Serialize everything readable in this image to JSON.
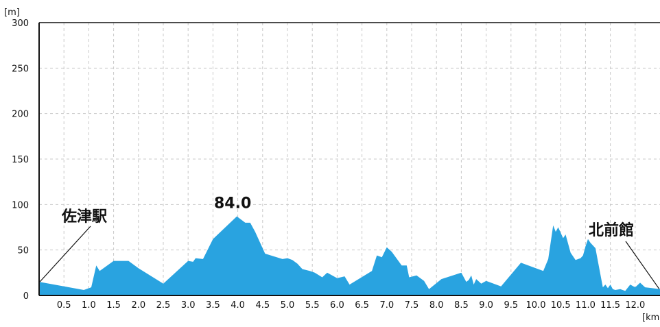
{
  "chart_data": {
    "type": "area",
    "ylabel_unit": "[m]",
    "xlabel_unit": "[km]",
    "ylim": [
      0,
      300
    ],
    "xlim": [
      0,
      12.5
    ],
    "yticks": [
      "0",
      "50",
      "100",
      "150",
      "200",
      "250",
      "300"
    ],
    "xticks": [
      "0.5",
      "1.0",
      "1.5",
      "2.0",
      "2.5",
      "3.0",
      "3.5",
      "4.0",
      "4.5",
      "5.0",
      "5.5",
      "6.0",
      "6.5",
      "7.0",
      "7.5",
      "8.0",
      "8.5",
      "9.0",
      "9.5",
      "10.0",
      "10.5",
      "11.0",
      "11.5",
      "12.0"
    ],
    "grid": true,
    "color": "#29a3e0",
    "peak_label": "84.0",
    "start_label": "佐津駅",
    "end_label": "北前館",
    "points": [
      [
        0.0,
        15
      ],
      [
        0.9,
        6
      ],
      [
        1.05,
        9
      ],
      [
        1.15,
        33
      ],
      [
        1.22,
        27
      ],
      [
        1.5,
        38
      ],
      [
        1.8,
        38
      ],
      [
        2.0,
        30
      ],
      [
        2.5,
        13
      ],
      [
        3.0,
        38
      ],
      [
        3.1,
        37
      ],
      [
        3.15,
        41
      ],
      [
        3.3,
        40
      ],
      [
        3.5,
        62
      ],
      [
        3.75,
        75
      ],
      [
        3.98,
        87
      ],
      [
        4.15,
        80
      ],
      [
        4.25,
        80
      ],
      [
        4.35,
        70
      ],
      [
        4.55,
        46
      ],
      [
        4.9,
        40
      ],
      [
        5.0,
        41
      ],
      [
        5.1,
        39
      ],
      [
        5.2,
        35
      ],
      [
        5.3,
        29
      ],
      [
        5.45,
        27
      ],
      [
        5.55,
        25
      ],
      [
        5.7,
        20
      ],
      [
        5.8,
        25
      ],
      [
        6.0,
        19
      ],
      [
        6.15,
        21
      ],
      [
        6.25,
        12
      ],
      [
        6.7,
        27
      ],
      [
        6.8,
        44
      ],
      [
        6.9,
        42
      ],
      [
        7.0,
        53
      ],
      [
        7.1,
        48
      ],
      [
        7.3,
        33
      ],
      [
        7.4,
        33
      ],
      [
        7.45,
        20
      ],
      [
        7.6,
        22
      ],
      [
        7.75,
        16
      ],
      [
        7.85,
        7
      ],
      [
        8.1,
        18
      ],
      [
        8.5,
        25
      ],
      [
        8.6,
        15
      ],
      [
        8.65,
        17
      ],
      [
        8.7,
        22
      ],
      [
        8.75,
        12
      ],
      [
        8.8,
        18
      ],
      [
        8.9,
        13
      ],
      [
        9.0,
        16
      ],
      [
        9.3,
        10
      ],
      [
        9.7,
        36
      ],
      [
        10.0,
        30
      ],
      [
        10.15,
        27
      ],
      [
        10.25,
        40
      ],
      [
        10.35,
        77
      ],
      [
        10.4,
        70
      ],
      [
        10.45,
        75
      ],
      [
        10.55,
        63
      ],
      [
        10.6,
        67
      ],
      [
        10.7,
        47
      ],
      [
        10.8,
        39
      ],
      [
        10.9,
        41
      ],
      [
        10.95,
        44
      ],
      [
        11.0,
        54
      ],
      [
        11.05,
        62
      ],
      [
        11.1,
        58
      ],
      [
        11.2,
        52
      ],
      [
        11.35,
        9
      ],
      [
        11.4,
        12
      ],
      [
        11.45,
        8
      ],
      [
        11.5,
        12
      ],
      [
        11.55,
        7
      ],
      [
        11.6,
        6
      ],
      [
        11.7,
        7
      ],
      [
        11.8,
        5
      ],
      [
        11.9,
        12
      ],
      [
        12.0,
        9
      ],
      [
        12.1,
        14
      ],
      [
        12.2,
        9
      ],
      [
        12.35,
        8
      ],
      [
        12.5,
        7
      ]
    ]
  }
}
